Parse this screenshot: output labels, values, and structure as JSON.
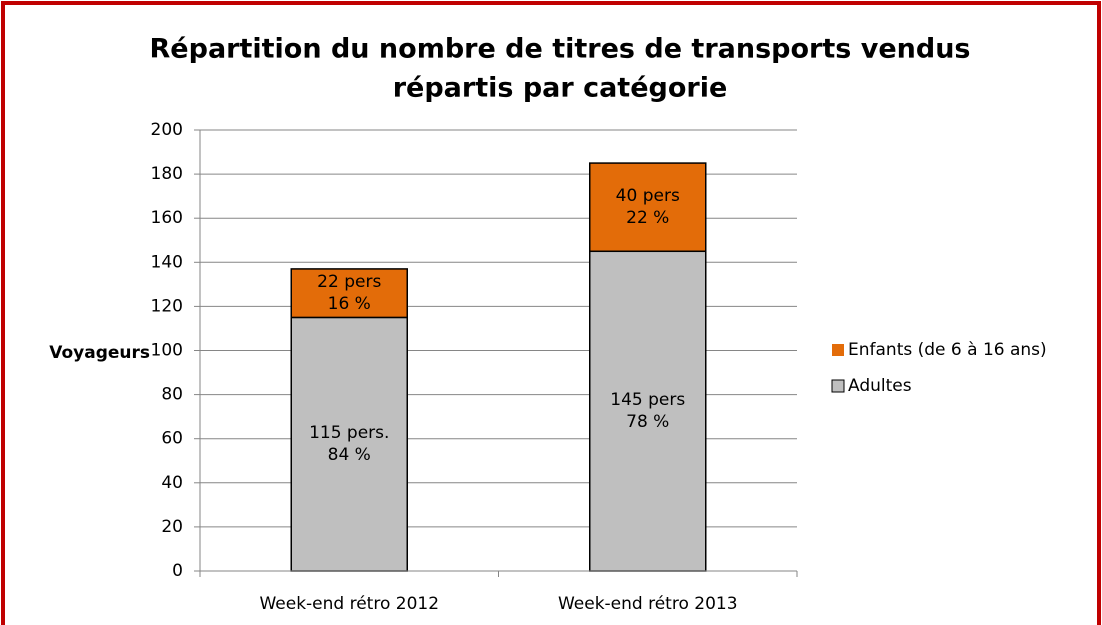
{
  "chart_data": {
    "type": "stacked_bar",
    "title": [
      "Répartition du nombre de titres de transports vendus",
      "répartis par catégorie"
    ],
    "ylabel": "Voyageurs",
    "categories": [
      "Week-end rétro 2012",
      "Week-end rétro 2013"
    ],
    "series": [
      {
        "name": "Adultes",
        "color": "#bfbfbf",
        "values": [
          115,
          145
        ],
        "value_labels": [
          "115 pers.",
          "145 pers"
        ],
        "share_labels": [
          "84 %",
          "78 %"
        ]
      },
      {
        "name": "Enfants (de 6 à 16 ans)",
        "color": "#e36c09",
        "values": [
          22,
          40
        ],
        "value_labels": [
          "22 pers",
          "40 pers"
        ],
        "share_labels": [
          "16 %",
          "22 %"
        ]
      }
    ],
    "ylim": [
      0,
      200
    ],
    "yticks": [
      0,
      20,
      40,
      60,
      80,
      100,
      120,
      140,
      160,
      180,
      200
    ],
    "grid": true,
    "legend": "right"
  }
}
